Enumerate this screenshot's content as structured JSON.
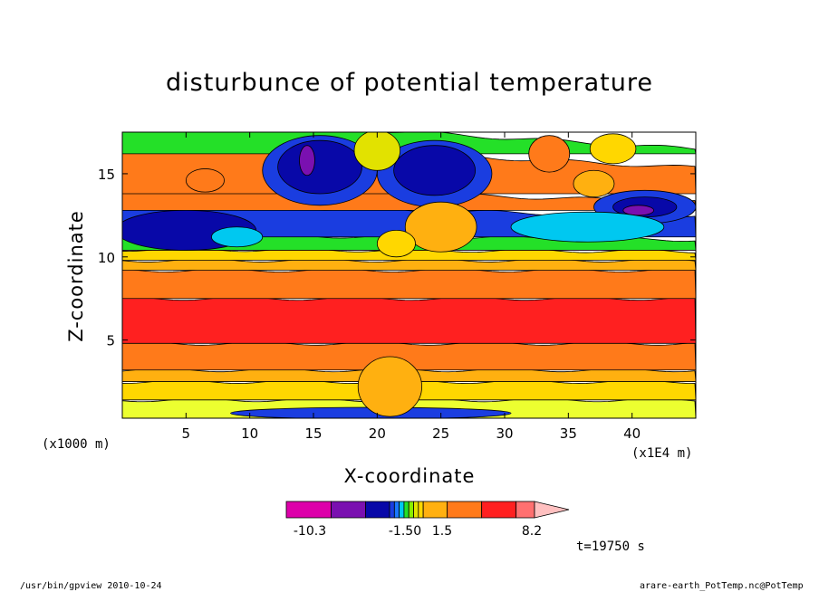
{
  "chart_data": {
    "type": "heatmap",
    "title": "disturbunce of potential temperature",
    "xlabel": "X-coordinate",
    "ylabel": "Z-coordinate",
    "x_unit_left": "(x1000 m)",
    "x_unit_right": "(x1E4 m)",
    "xlim": [
      0,
      45
    ],
    "ylim": [
      0.3,
      17.5
    ],
    "xticks": [
      5,
      10,
      15,
      20,
      25,
      30,
      35,
      40
    ],
    "yticks": [
      5,
      10,
      15
    ],
    "colorbar": {
      "colors": [
        "#dd00aa",
        "#7a10b0",
        "#0808a8",
        "#1a3de0",
        "#1a78ff",
        "#00c8f0",
        "#24e028",
        "#8aee00",
        "#e2e200",
        "#ffd700",
        "#ffb010",
        "#ff7a1a",
        "#ff2020",
        "#ff7070",
        "#ffc0c0"
      ],
      "labels": [
        "-10.3",
        "-1.50",
        "1.5",
        "8.2"
      ]
    },
    "bands": [
      {
        "z0": 0.3,
        "z1": 1.4,
        "color": "#ecff30"
      },
      {
        "z0": 1.4,
        "z1": 2.5,
        "color": "#ffd700"
      },
      {
        "z0": 2.5,
        "z1": 3.2,
        "color": "#ffb010"
      },
      {
        "z0": 3.2,
        "z1": 4.8,
        "color": "#ff7a1a"
      },
      {
        "z0": 4.8,
        "z1": 7.5,
        "color": "#ff2020"
      },
      {
        "z0": 7.5,
        "z1": 9.2,
        "color": "#ff7a1a"
      },
      {
        "z0": 9.2,
        "z1": 9.8,
        "color": "#ffb010"
      },
      {
        "z0": 9.8,
        "z1": 10.4,
        "color": "#ffd700"
      },
      {
        "z0": 10.4,
        "z1": 11.2,
        "color": "#24e028"
      },
      {
        "z0": 11.2,
        "z1": 12.8,
        "color": "#1a3de0"
      },
      {
        "z0": 12.8,
        "z1": 13.8,
        "color": "#ff7a1a"
      },
      {
        "z0": 13.8,
        "z1": 16.2,
        "color": "#ff7a1a"
      },
      {
        "z0": 16.2,
        "z1": 17.5,
        "color": "#24e028"
      }
    ],
    "features": [
      {
        "x": 15.5,
        "z": 15.2,
        "rx": 4.5,
        "rz": 2.1,
        "color": "#1a3de0"
      },
      {
        "x": 15.5,
        "z": 15.4,
        "rx": 3.3,
        "rz": 1.6,
        "color": "#0808a8"
      },
      {
        "x": 14.5,
        "z": 15.8,
        "rx": 0.6,
        "rz": 0.9,
        "color": "#7a10b0"
      },
      {
        "x": 24.5,
        "z": 15.0,
        "rx": 4.5,
        "rz": 2.0,
        "color": "#1a3de0"
      },
      {
        "x": 24.5,
        "z": 15.2,
        "rx": 3.2,
        "rz": 1.5,
        "color": "#0808a8"
      },
      {
        "x": 20.0,
        "z": 16.4,
        "rx": 1.8,
        "rz": 1.2,
        "color": "#e2e200"
      },
      {
        "x": 33.5,
        "z": 16.2,
        "rx": 1.6,
        "rz": 1.1,
        "color": "#ff7a1a"
      },
      {
        "x": 38.5,
        "z": 16.5,
        "rx": 1.8,
        "rz": 0.9,
        "color": "#ffd700"
      },
      {
        "x": 37.0,
        "z": 14.4,
        "rx": 1.6,
        "rz": 0.8,
        "color": "#ffb010"
      },
      {
        "x": 41.0,
        "z": 13.0,
        "rx": 4.0,
        "rz": 1.0,
        "color": "#1a3de0"
      },
      {
        "x": 41.0,
        "z": 13.0,
        "rx": 2.5,
        "rz": 0.6,
        "color": "#0808a8"
      },
      {
        "x": 40.5,
        "z": 12.8,
        "rx": 1.2,
        "rz": 0.3,
        "color": "#7a10b0"
      },
      {
        "x": 36.5,
        "z": 11.8,
        "rx": 6.0,
        "rz": 0.9,
        "color": "#00c8f0"
      },
      {
        "x": 5.0,
        "z": 11.6,
        "rx": 5.5,
        "rz": 1.2,
        "color": "#0808a8"
      },
      {
        "x": 9.0,
        "z": 11.2,
        "rx": 2.0,
        "rz": 0.6,
        "color": "#00c8f0"
      },
      {
        "x": 6.5,
        "z": 14.6,
        "rx": 1.5,
        "rz": 0.7,
        "color": "#ff7a1a"
      },
      {
        "x": 25.0,
        "z": 11.8,
        "rx": 2.8,
        "rz": 1.5,
        "color": "#ffb010"
      },
      {
        "x": 21.5,
        "z": 10.8,
        "rx": 1.5,
        "rz": 0.8,
        "color": "#ffd700"
      },
      {
        "x": 19.5,
        "z": 0.6,
        "rx": 11.0,
        "rz": 0.35,
        "color": "#1a3de0"
      },
      {
        "x": 21.0,
        "z": 2.2,
        "rx": 2.5,
        "rz": 1.8,
        "color": "#ffb010"
      }
    ]
  },
  "time_label": "t=19750  s",
  "footer": {
    "left": "/usr/bin/gpview  2010-10-24",
    "right": "arare-earth_PotTemp.nc@PotTemp"
  }
}
